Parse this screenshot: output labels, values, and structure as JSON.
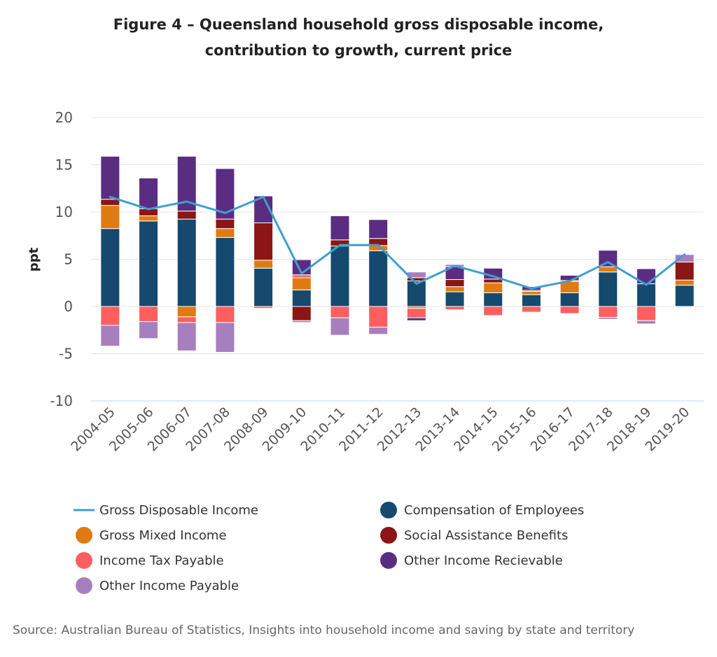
{
  "chart_data": {
    "type": "bar",
    "title": "Figure 4 – Queensland household gross disposable income,",
    "subtitle": "contribution to growth, current price",
    "xlabel": "",
    "ylabel": "ppt",
    "ylim": [
      -10,
      20
    ],
    "yticks": [
      20,
      15,
      10,
      5,
      0,
      -5,
      -10
    ],
    "grid": true,
    "stacked": true,
    "legend_position": "bottom",
    "categories": [
      "2004-05",
      "2005-06",
      "2006-07",
      "2007-08",
      "2008-09",
      "2009-10",
      "2010-11",
      "2011-12",
      "2012-13",
      "2013-14",
      "2014-15",
      "2015-16",
      "2016-17",
      "2017-18",
      "2018-19",
      "2019-20"
    ],
    "series": [
      {
        "name": "Compensation of Employees",
        "kind": "bar",
        "color": "#154a6e",
        "values": [
          8.25,
          9.05,
          9.25,
          7.3,
          4.05,
          1.75,
          6.4,
          5.9,
          2.7,
          1.55,
          1.45,
          1.25,
          1.45,
          3.65,
          2.4,
          2.25
        ]
      },
      {
        "name": "Gross Mixed Income",
        "kind": "bar",
        "color": "#e07b12",
        "values": [
          2.45,
          0.55,
          -1.1,
          0.95,
          0.85,
          1.3,
          0,
          0.55,
          -0.2,
          0.55,
          1.05,
          0.35,
          1.2,
          0.55,
          0,
          0.55
        ]
      },
      {
        "name": "Social Assistance Benefits",
        "kind": "bar",
        "color": "#8c1515",
        "values": [
          0.65,
          0.75,
          0.85,
          1.0,
          3.95,
          -1.5,
          0.65,
          0.75,
          0.35,
          0.75,
          0.4,
          0.1,
          0.1,
          0,
          0,
          1.9
        ]
      },
      {
        "name": "Income Tax Payable",
        "kind": "bar",
        "color": "#ff5f5f",
        "values": [
          -2.0,
          -1.6,
          -0.6,
          -1.7,
          -0.2,
          0.3,
          -1.2,
          -2.2,
          -1.0,
          -0.35,
          -0.95,
          -0.6,
          -0.75,
          -1.15,
          -1.5,
          0
        ]
      },
      {
        "name": "Other Income Recievable",
        "kind": "bar",
        "color": "#5a2d82",
        "values": [
          4.55,
          3.25,
          5.8,
          5.35,
          2.85,
          1.6,
          2.55,
          2.0,
          -0.3,
          1.35,
          1.15,
          0.4,
          0.55,
          1.75,
          1.6,
          0
        ]
      },
      {
        "name": "Other Income Payable",
        "kind": "bar",
        "color": "#a77fbf",
        "values": [
          -2.2,
          -1.8,
          -3.0,
          -3.15,
          0,
          -0.2,
          -1.85,
          -0.75,
          0.6,
          0.25,
          0,
          0,
          0,
          -0.2,
          -0.35,
          0.8
        ]
      },
      {
        "name": "Gross Disposable Income",
        "kind": "line",
        "color": "#3d9fd0",
        "values": [
          11.6,
          10.3,
          11.1,
          9.9,
          11.6,
          3.5,
          6.5,
          6.5,
          2.4,
          4.3,
          3.2,
          1.9,
          2.7,
          4.7,
          2.3,
          5.5
        ]
      }
    ],
    "legend_order": [
      "Gross Disposable Income",
      "Compensation of Employees",
      "Gross Mixed Income",
      "Social Assistance Benefits",
      "Income Tax Payable",
      "Other Income Recievable",
      "Other Income Payable"
    ],
    "source": "Source: Australian Bureau of Statistics, Insights into household income and saving by state and territory"
  }
}
